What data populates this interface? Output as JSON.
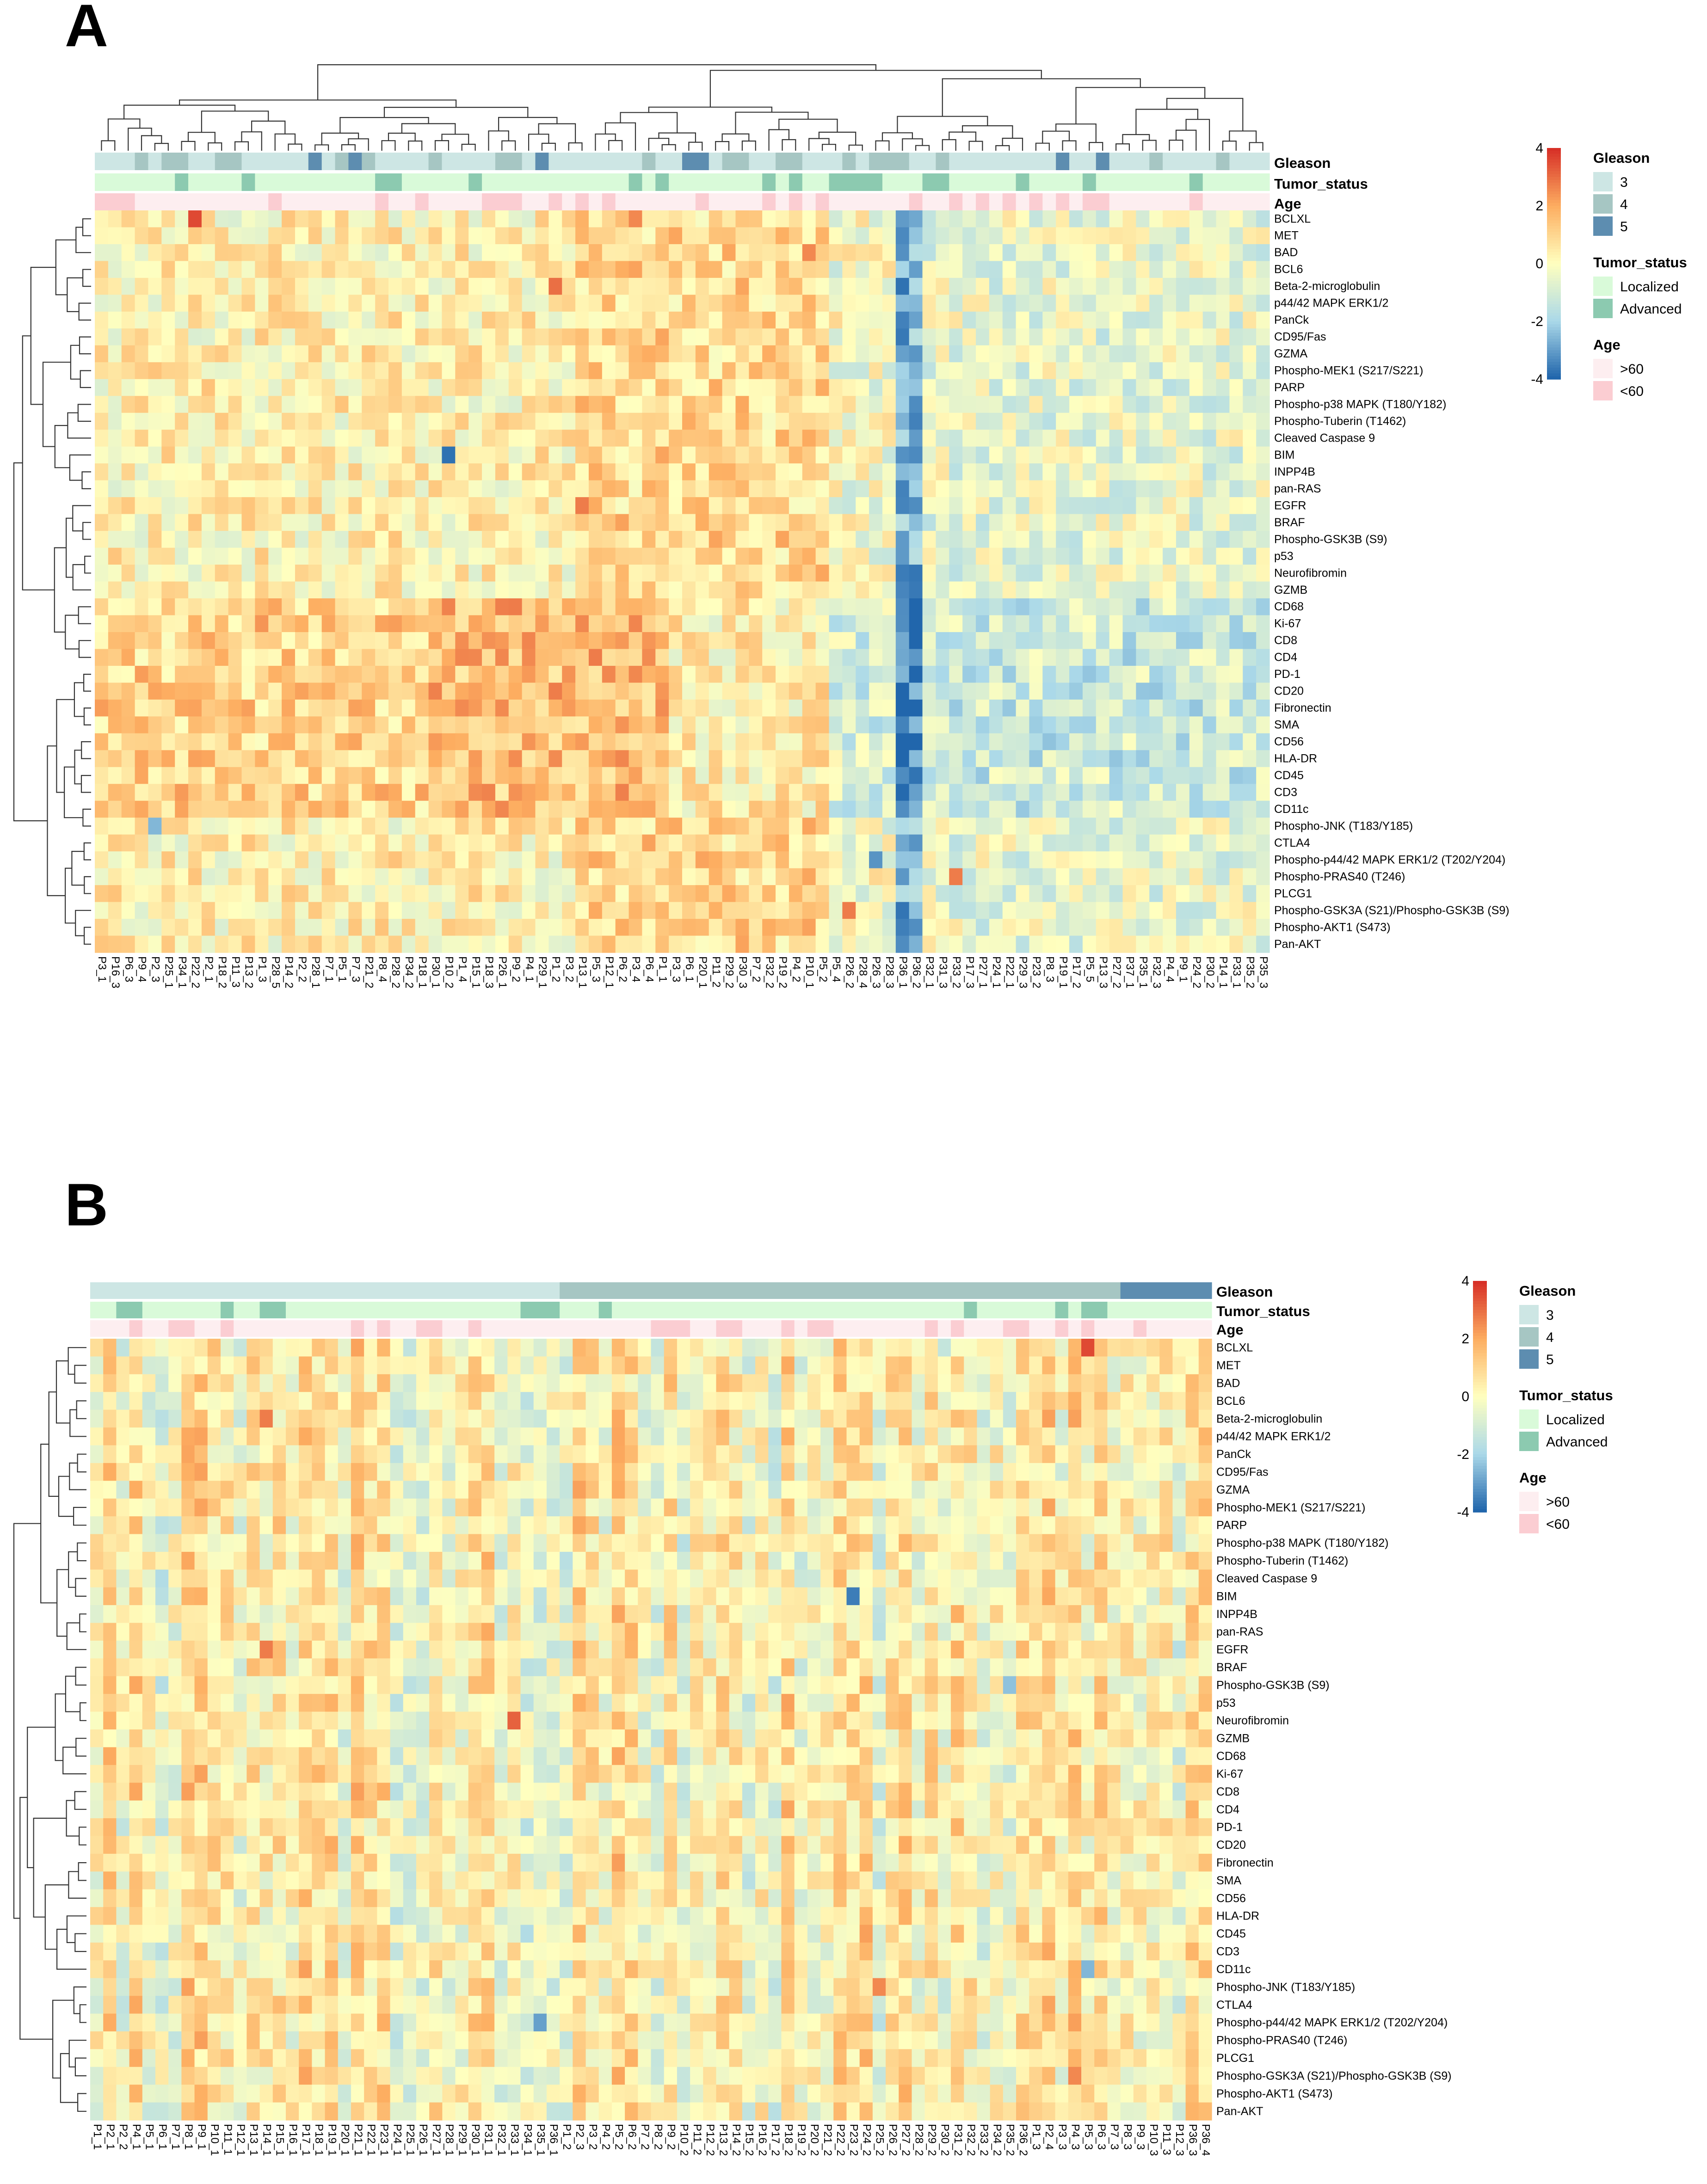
{
  "figure": {
    "panels": [
      {
        "letter": "A",
        "clustered_columns": true
      },
      {
        "letter": "B",
        "clustered_columns": false
      }
    ]
  },
  "chart_data": [
    {
      "type": "heatmap",
      "panel": "A",
      "title": "",
      "rows": [
        "BCLXL",
        "MET",
        "BAD",
        "BCL6",
        "Beta-2-microglobulin",
        "p44/42 MAPK ERK1/2",
        "PanCk",
        "CD95/Fas",
        "GZMA",
        "Phospho-MEK1 (S217/S221)",
        "PARP",
        "Phospho-p38 MAPK (T180/Y182)",
        "Phospho-Tuberin (T1462)",
        "Cleaved Caspase 9",
        "BIM",
        "INPP4B",
        "pan-RAS",
        "EGFR",
        "BRAF",
        "Phospho-GSK3B (S9)",
        "p53",
        "Neurofibromin",
        "GZMB",
        "CD68",
        "Ki-67",
        "CD8",
        "CD4",
        "PD-1",
        "CD20",
        "Fibronectin",
        "SMA",
        "CD56",
        "HLA-DR",
        "CD45",
        "CD3",
        "CD11c",
        "Phospho-JNK (T183/Y185)",
        "CTLA4",
        "Phospho-p44/42 MAPK ERK1/2 (T202/Y204)",
        "Phospho-PRAS40 (T246)",
        "PLCG1",
        "Phospho-GSK3A (S21)/Phospho-GSK3B (S9)",
        "Phospho-AKT1 (S473)",
        "Pan-AKT"
      ],
      "columns": [
        "P3_1",
        "P16_3",
        "P6_3",
        "P9_4",
        "P2_3",
        "P25_1",
        "P34_1",
        "P22_2",
        "P2_1",
        "P18_2",
        "P11_3",
        "P13_2",
        "P1_3",
        "P28_5",
        "P14_2",
        "P2_2",
        "P28_1",
        "P7_1",
        "P5_1",
        "P7_3",
        "P21_2",
        "P8_4",
        "P28_2",
        "P34_2",
        "P18_1",
        "P30_1",
        "P10_2",
        "P1_4",
        "P15_1",
        "P18_3",
        "P26_1",
        "P9_2",
        "P4_1",
        "P29_1",
        "P1_2",
        "P3_2",
        "P13_1",
        "P5_3",
        "P12_1",
        "P6_2",
        "P3_4",
        "P6_4",
        "P1_1",
        "P3_3",
        "P6_1",
        "P20_1",
        "P11_2",
        "P29_2",
        "P30_3",
        "P7_2",
        "P32_2",
        "P19_2",
        "P4_2",
        "P10_1",
        "P5_2",
        "P5_4",
        "P26_2",
        "P28_4",
        "P26_3",
        "P28_3",
        "P36_1",
        "P36_2",
        "P32_1",
        "P31_3",
        "P33_2",
        "P17_3",
        "P27_1",
        "P24_1",
        "P22_1",
        "P29_3",
        "P23_2",
        "P8_3",
        "P19_1",
        "P17_2",
        "P5_5",
        "P13_3",
        "P27_2",
        "P37_1",
        "P35_1",
        "P32_3",
        "P4_4",
        "P9_1",
        "P24_2",
        "P30_2",
        "P14_1",
        "P33_1",
        "P35_2",
        "P35_3"
      ],
      "annotation_tracks": [
        "Gleason",
        "Tumor_status",
        "Age"
      ],
      "color_scale": {
        "min": -4,
        "max": 4,
        "ticks": [
          "4",
          "2",
          "0",
          "-2",
          "-4"
        ],
        "low": "#2166ac",
        "mid": "#ffffbf",
        "high": "#d7301f"
      },
      "value_generation": "pseudo-estimated z-scores (warm immune block, cold P36 columns)"
    },
    {
      "type": "heatmap",
      "panel": "B",
      "title": "",
      "rows": [
        "BCLXL",
        "MET",
        "BAD",
        "BCL6",
        "Beta-2-microglobulin",
        "p44/42 MAPK ERK1/2",
        "PanCk",
        "CD95/Fas",
        "GZMA",
        "Phospho-MEK1 (S217/S221)",
        "PARP",
        "Phospho-p38 MAPK (T180/Y182)",
        "Phospho-Tuberin (T1462)",
        "Cleaved Caspase 9",
        "BIM",
        "INPP4B",
        "pan-RAS",
        "EGFR",
        "BRAF",
        "Phospho-GSK3B (S9)",
        "p53",
        "Neurofibromin",
        "GZMB",
        "CD68",
        "Ki-67",
        "CD8",
        "CD4",
        "PD-1",
        "CD20",
        "Fibronectin",
        "SMA",
        "CD56",
        "HLA-DR",
        "CD45",
        "CD3",
        "CD11c",
        "Phospho-JNK (T183/Y185)",
        "CTLA4",
        "Phospho-p44/42 MAPK ERK1/2 (T202/Y204)",
        "Phospho-PRAS40 (T246)",
        "PLCG1",
        "Phospho-GSK3A (S21)/Phospho-GSK3B (S9)",
        "Phospho-AKT1 (S473)",
        "Pan-AKT"
      ],
      "columns": [
        "P1_1",
        "P2_1",
        "P2_2",
        "P4_1",
        "P5_1",
        "P6_1",
        "P7_1",
        "P8_1",
        "P9_1",
        "P10_1",
        "P11_1",
        "P12_1",
        "P13_1",
        "P14_1",
        "P15_1",
        "P16_1",
        "P17_1",
        "P18_1",
        "P19_1",
        "P20_1",
        "P21_1",
        "P22_1",
        "P23_1",
        "P24_1",
        "P25_1",
        "P26_1",
        "P27_1",
        "P28_1",
        "P29_1",
        "P30_1",
        "P31_1",
        "P32_1",
        "P33_1",
        "P34_1",
        "P35_1",
        "P36_1",
        "P1_2",
        "P2_3",
        "P3_2",
        "P4_2",
        "P5_2",
        "P6_2",
        "P7_2",
        "P8_2",
        "P9_2",
        "P10_2",
        "P11_2",
        "P12_2",
        "P13_2",
        "P14_2",
        "P15_2",
        "P16_2",
        "P17_2",
        "P18_2",
        "P19_2",
        "P20_2",
        "P21_2",
        "P22_2",
        "P23_2",
        "P24_2",
        "P25_2",
        "P26_2",
        "P27_2",
        "P28_2",
        "P29_2",
        "P30_2",
        "P31_2",
        "P32_2",
        "P33_2",
        "P34_2",
        "P35_2",
        "P36_2",
        "P1_3",
        "P2_4",
        "P3_3",
        "P4_3",
        "P5_3",
        "P6_3",
        "P7_3",
        "P8_3",
        "P9_3",
        "P10_3",
        "P11_3",
        "P12_3",
        "P36_3",
        "P36_4"
      ],
      "annotation_tracks": [
        "Gleason",
        "Tumor_status",
        "Age"
      ],
      "color_scale": {
        "min": -4,
        "max": 4,
        "ticks": [
          "4",
          "2",
          "0",
          "-2",
          "-4"
        ],
        "low": "#2166ac",
        "mid": "#ffffbf",
        "high": "#d7301f"
      },
      "value_generation": "pseudo-estimated z-scores (column-wise texture, blue column near P36)"
    }
  ],
  "legend": {
    "gleason": {
      "title": "Gleason",
      "items": [
        {
          "label": "3",
          "color": "#cde6e4"
        },
        {
          "label": "4",
          "color": "#a6c6c3"
        },
        {
          "label": "5",
          "color": "#5d8db0"
        }
      ]
    },
    "tumor_status": {
      "title": "Tumor_status",
      "items": [
        {
          "label": "Localized",
          "color": "#d9fad9"
        },
        {
          "label": "Advanced",
          "color": "#8ccab0"
        }
      ]
    },
    "age": {
      "title": "Age",
      "items": [
        {
          "label": ">60",
          "color": "#fdeef0"
        },
        {
          "label": "<60",
          "color": "#fbcdd2"
        }
      ]
    }
  }
}
